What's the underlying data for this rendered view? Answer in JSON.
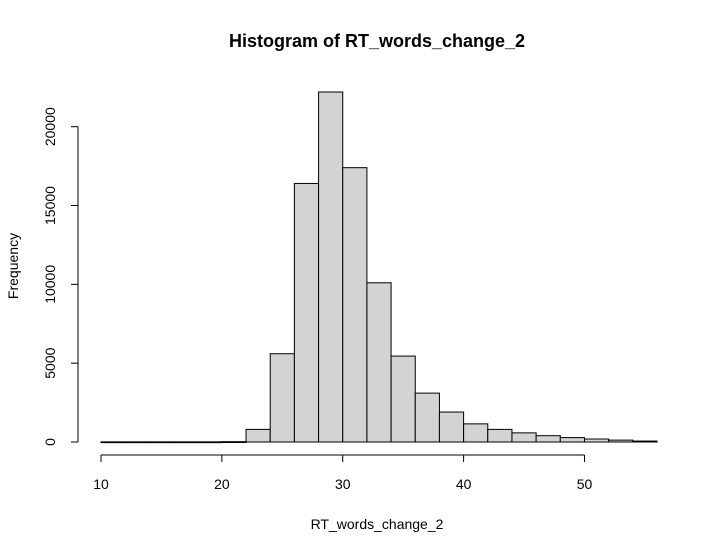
{
  "chart_data": {
    "type": "bar",
    "title": "Histogram of RT_words_change_2",
    "xlabel": "RT_words_change_2",
    "ylabel": "Frequency",
    "bin_edges": [
      10,
      12,
      14,
      16,
      18,
      20,
      22,
      24,
      26,
      28,
      30,
      32,
      34,
      36,
      38,
      40,
      42,
      44,
      46,
      48,
      50,
      52,
      54,
      56
    ],
    "values": [
      10,
      10,
      10,
      10,
      10,
      20,
      800,
      5600,
      16400,
      22200,
      17400,
      10100,
      5450,
      3100,
      1900,
      1150,
      800,
      580,
      400,
      280,
      190,
      120,
      60
    ],
    "xlim": [
      10,
      56
    ],
    "ylim": [
      0,
      22200
    ],
    "x_ticks": [
      10,
      20,
      30,
      40,
      50
    ],
    "x_tick_labels": [
      "10",
      "20",
      "30",
      "40",
      "50"
    ],
    "y_ticks": [
      0,
      5000,
      10000,
      15000,
      20000
    ],
    "y_tick_labels": [
      "0",
      "5000",
      "10000",
      "15000",
      "20000"
    ],
    "grid": false,
    "bar_color": "#d3d3d3",
    "edge_color": "#000000"
  }
}
